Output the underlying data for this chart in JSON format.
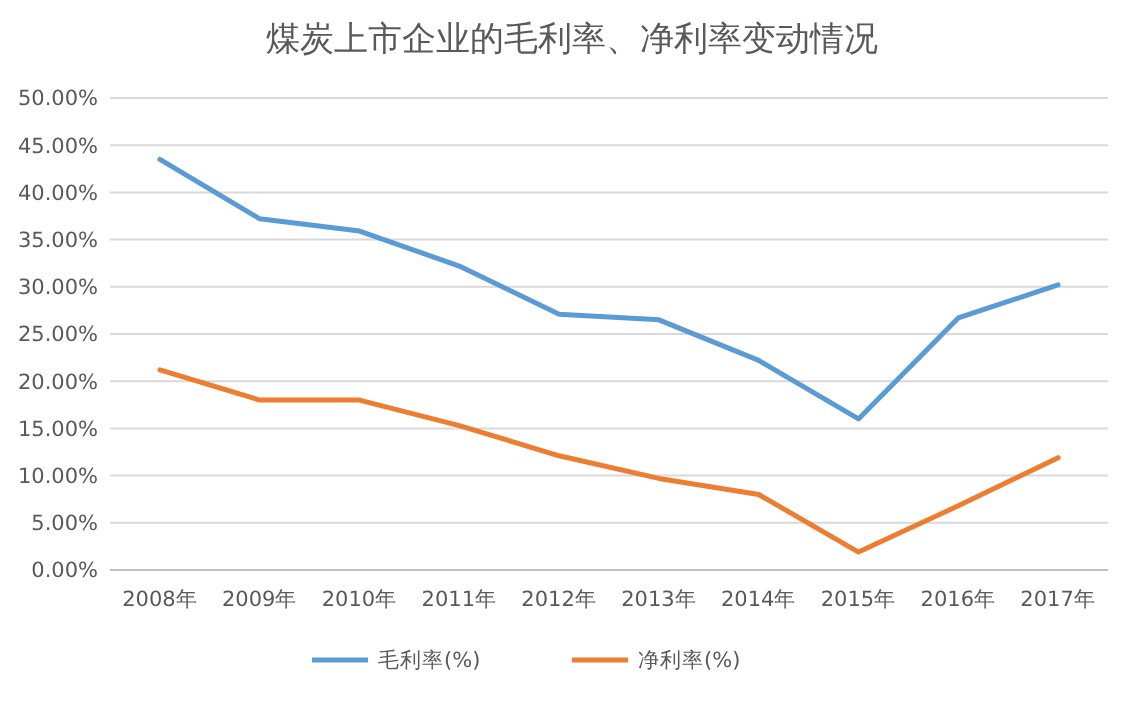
{
  "chart_data": {
    "type": "line",
    "title": "煤炭上市企业的毛利率、净利率变动情况",
    "categories": [
      "2008年",
      "2009年",
      "2010年",
      "2011年",
      "2012年",
      "2013年",
      "2014年",
      "2015年",
      "2016年",
      "2017年"
    ],
    "series": [
      {
        "name": "毛利率(%)",
        "color": "#5b9bd5",
        "values": [
          43.5,
          37.2,
          35.9,
          32.2,
          27.1,
          26.5,
          22.2,
          16.0,
          26.7,
          30.2
        ]
      },
      {
        "name": "净利率(%)",
        "color": "#ed7d31",
        "values": [
          21.2,
          18.0,
          18.0,
          15.3,
          12.1,
          9.7,
          8.0,
          1.9,
          6.8,
          11.9
        ]
      }
    ],
    "ylim": [
      0,
      50
    ],
    "yticks": [
      {
        "value": 0,
        "label": "0.00%"
      },
      {
        "value": 5,
        "label": "5.00%"
      },
      {
        "value": 10,
        "label": "10.00%"
      },
      {
        "value": 15,
        "label": "15.00%"
      },
      {
        "value": 20,
        "label": "20.00%"
      },
      {
        "value": 25,
        "label": "25.00%"
      },
      {
        "value": 30,
        "label": "30.00%"
      },
      {
        "value": 35,
        "label": "35.00%"
      },
      {
        "value": 40,
        "label": "40.00%"
      },
      {
        "value": 45,
        "label": "45.00%"
      },
      {
        "value": 50,
        "label": "50.00%"
      }
    ],
    "grid": "y",
    "legend": "bottom",
    "marker": "none",
    "line_style": "solid"
  }
}
